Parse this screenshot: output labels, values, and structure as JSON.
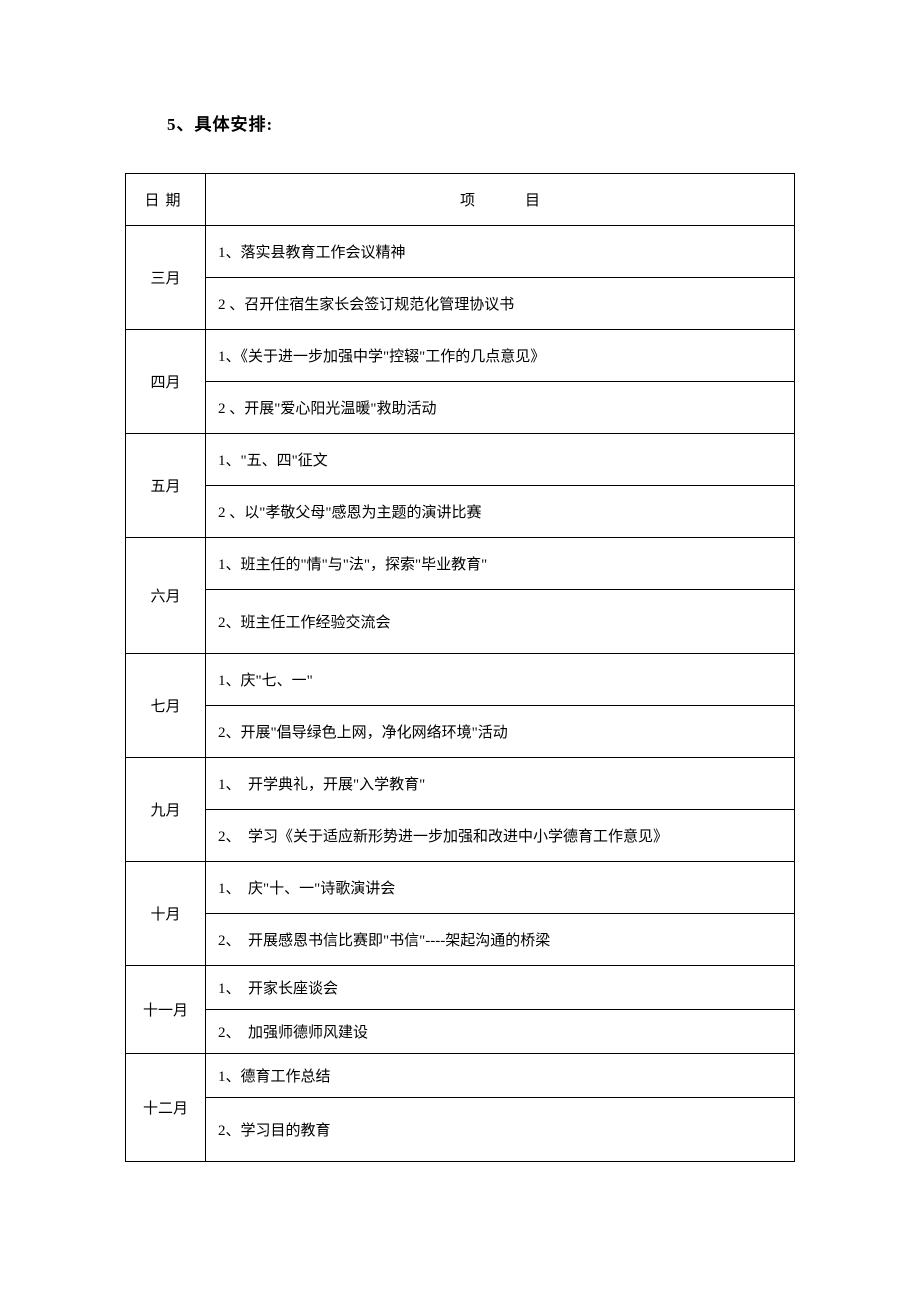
{
  "section_title": "5、具体安排:",
  "table": {
    "headers": {
      "date": "日期",
      "item": "项目"
    },
    "rows": [
      {
        "month": "三月",
        "items": [
          "1、落实县教育工作会议精神",
          "2 、召开住宿生家长会签订规范化管理协议书"
        ]
      },
      {
        "month": "四月",
        "items": [
          "1、《关于进一步加强中学\"控辍\"工作的几点意见》",
          "2 、开展\"爱心阳光温暖\"救助活动"
        ]
      },
      {
        "month": "五月",
        "items": [
          "1、\"五、四\"征文",
          "2 、以\"孝敬父母\"感恩为主题的演讲比赛"
        ]
      },
      {
        "month": "六月",
        "items": [
          "1、班主任的\"情\"与\"法\"，探索\"毕业教育\"",
          "2、班主任工作经验交流会"
        ]
      },
      {
        "month": "七月",
        "items": [
          "1、庆\"七、一\"",
          "2、开展\"倡导绿色上网，净化网络环境\"活动"
        ]
      },
      {
        "month": "九月",
        "items": [
          "1、　开学典礼，开展\"入学教育\"",
          "2、　学习《关于适应新形势进一步加强和改进中小学德育工作意见》"
        ]
      },
      {
        "month": "十月",
        "items": [
          "1、　庆\"十、一\"诗歌演讲会",
          "2、　开展感恩书信比赛即\"书信\"----架起沟通的桥梁"
        ]
      },
      {
        "month": "十一月",
        "items": [
          "1、　开家长座谈会",
          "2、　加强师德师风建设"
        ]
      },
      {
        "month": "十二月",
        "items": [
          "1、德育工作总结",
          "2、学习目的教育"
        ]
      }
    ]
  },
  "style": {
    "background_color": "#ffffff",
    "text_color": "#000000",
    "border_color": "#000000",
    "font_family": "SimSun",
    "title_fontsize": 17,
    "body_fontsize": 15,
    "col_widths": {
      "date": 80,
      "item": 590
    },
    "row_height_normal": 52,
    "row_height_short": 44,
    "row_height_tall": 64
  }
}
